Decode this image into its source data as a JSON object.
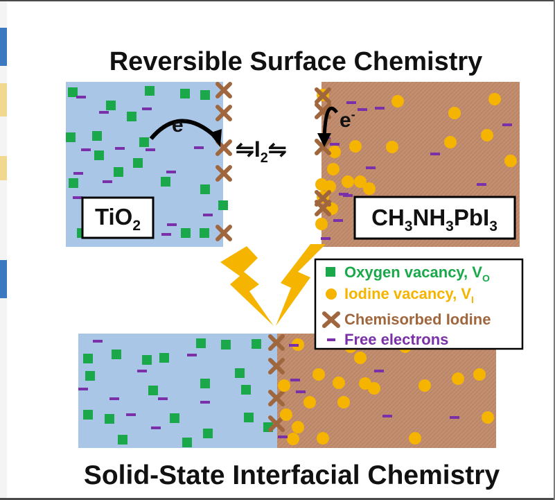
{
  "top_title": "Reversible Surface Chemistry",
  "bottom_title": "Solid-State Interfacial Chemistry",
  "electron_label_left": "e",
  "electron_label_left_sup": "-",
  "electron_label_right": "e",
  "electron_label_right_sup": "-",
  "equilibrium": {
    "left_arrow": "⇋",
    "species": "I",
    "subscript": "2",
    "right_arrow": "⇋"
  },
  "tio2_label": {
    "base": "TiO",
    "sub": "2"
  },
  "perovskite_label": {
    "p1": "CH",
    "s1": "3",
    "p2": "NH",
    "s2": "3",
    "p3": "PbI",
    "s3": "3"
  },
  "legend": [
    {
      "marker": "green-square",
      "text": "Oxygen vacancy, V",
      "sub": "O",
      "color": "#1aa84a"
    },
    {
      "marker": "yellow-circle",
      "text": "Iodine vacancy, V",
      "sub": "I",
      "color": "#f5b400"
    },
    {
      "marker": "brown-cross",
      "text": "Chemisorbed Iodine",
      "sub": "",
      "color": "#a0673e"
    },
    {
      "marker": "purple-dash",
      "text": "Free electrons",
      "sub": "",
      "color": "#7a30a8"
    }
  ],
  "colors": {
    "tio2": "#aac6e6",
    "perovskite": "#c28e70",
    "oxygen_vacancy": "#1aa84a",
    "iodine_vacancy": "#f5b400",
    "iodine_cross": "#a0673e",
    "electron": "#7a30a8",
    "lightning": "#f5b400"
  }
}
